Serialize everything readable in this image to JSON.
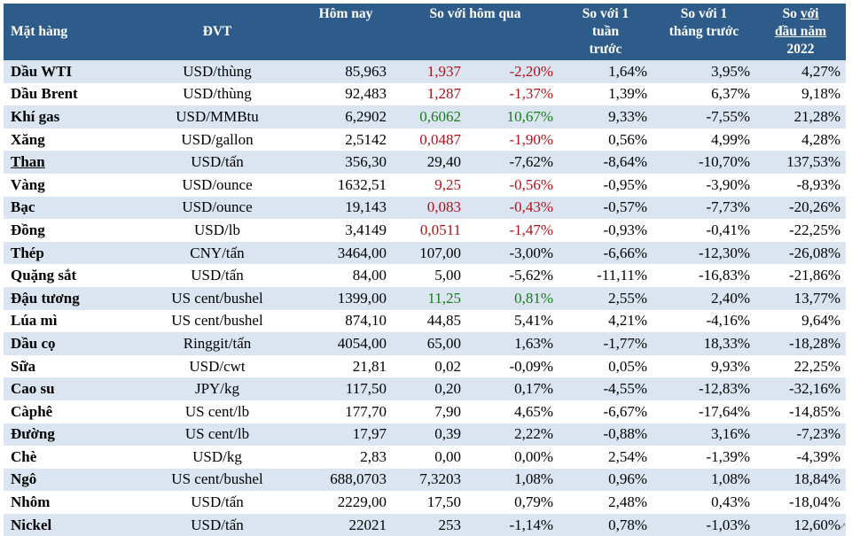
{
  "header": {
    "col_name": "Mặt hàng",
    "col_unit": "ĐVT",
    "col_today": "Hôm nay",
    "col_vs_yesterday": "So với hôm qua",
    "col_week_l1": "So với 1",
    "col_week_l2": "tuần",
    "col_week_l3": "trước",
    "col_month_l1": "So với 1",
    "col_month_l2": "tháng trước",
    "col_ytd_l1_a": "So ",
    "col_ytd_l1_b": "với",
    "col_ytd_l2": "đầu năm",
    "col_ytd_l3": "2022"
  },
  "colors": {
    "header_bg": "#2e5c8a",
    "stripe": "#dbe5f1",
    "up": "#1a7a1a",
    "down": "#b0121b"
  },
  "rows": [
    {
      "name": "Dầu WTI",
      "unit": "USD/thùng",
      "today": "85,963",
      "chg": "1,937",
      "pct": "-2,20%",
      "week": "1,64%",
      "month": "3,95%",
      "ytd": "4,27%",
      "color": "red"
    },
    {
      "name": "Dầu Brent",
      "unit": "USD/thùng",
      "today": "92,483",
      "chg": "1,287",
      "pct": "-1,37%",
      "week": "1,39%",
      "month": "6,37%",
      "ytd": "9,18%",
      "color": "red"
    },
    {
      "name": "Khí gas",
      "unit": "USD/MMBtu",
      "today": "6,2902",
      "chg": "0,6062",
      "pct": "10,67%",
      "week": "9,33%",
      "month": "-7,55%",
      "ytd": "21,28%",
      "color": "green"
    },
    {
      "name": "Xăng",
      "unit": "USD/gallon",
      "today": "2,5142",
      "chg": "0,0487",
      "pct": "-1,90%",
      "week": "0,56%",
      "month": "4,99%",
      "ytd": "4,28%",
      "color": "red"
    },
    {
      "name": "Than",
      "unit": "USD/tấn",
      "today": "356,30",
      "chg": "29,40",
      "pct": "-7,62%",
      "week": "-8,64%",
      "month": "-10,70%",
      "ytd": "137,53%",
      "color": "",
      "underline": true
    },
    {
      "name": "Vàng",
      "unit": "USD/ounce",
      "today": "1632,51",
      "chg": "9,25",
      "pct": "-0,56%",
      "week": "-0,95%",
      "month": "-3,90%",
      "ytd": "-8,93%",
      "color": "red"
    },
    {
      "name": "Bạc",
      "unit": "USD/ounce",
      "today": "19,143",
      "chg": "0,083",
      "pct": "-0,43%",
      "week": "-0,57%",
      "month": "-7,73%",
      "ytd": "-20,26%",
      "color": "red"
    },
    {
      "name": "Đồng",
      "unit": "USD/lb",
      "today": "3,4149",
      "chg": "0,0511",
      "pct": "-1,47%",
      "week": "-0,93%",
      "month": "-0,41%",
      "ytd": "-22,25%",
      "color": "red"
    },
    {
      "name": "Thép",
      "unit": "CNY/tấn",
      "today": "3464,00",
      "chg": "107,00",
      "pct": "-3,00%",
      "week": "-6,66%",
      "month": "-12,30%",
      "ytd": "-26,08%",
      "color": ""
    },
    {
      "name": "Quặng sắt",
      "unit": "USD/tấn",
      "today": "84,00",
      "chg": "5,00",
      "pct": "-5,62%",
      "week": "-11,11%",
      "month": "-16,83%",
      "ytd": "-21,86%",
      "color": ""
    },
    {
      "name": "Đậu tương",
      "unit": "US cent/bushel",
      "today": "1399,00",
      "chg": "11,25",
      "pct": "0,81%",
      "week": "2,55%",
      "month": "2,40%",
      "ytd": "13,77%",
      "color": "green"
    },
    {
      "name": "Lúa mì",
      "unit": "US cent/bushel",
      "today": "874,10",
      "chg": "44,85",
      "pct": "5,41%",
      "week": "4,21%",
      "month": "-4,16%",
      "ytd": "9,64%",
      "color": ""
    },
    {
      "name": "Dầu cọ",
      "unit": "Ringgit/tấn",
      "today": "4054,00",
      "chg": "65,00",
      "pct": "1,63%",
      "week": "-1,77%",
      "month": "18,33%",
      "ytd": "-18,28%",
      "color": ""
    },
    {
      "name": "Sữa",
      "unit": "USD/cwt",
      "today": "21,81",
      "chg": "0,02",
      "pct": "-0,09%",
      "week": "0,05%",
      "month": "9,93%",
      "ytd": "22,25%",
      "color": ""
    },
    {
      "name": "Cao su",
      "unit": "JPY/kg",
      "today": "117,50",
      "chg": "0,20",
      "pct": "0,17%",
      "week": "-4,55%",
      "month": "-12,83%",
      "ytd": "-32,16%",
      "color": ""
    },
    {
      "name": "Càphê",
      "unit": "US cent/lb",
      "today": "177,70",
      "chg": "7,90",
      "pct": "4,65%",
      "week": "-6,67%",
      "month": "-17,64%",
      "ytd": "-14,85%",
      "color": ""
    },
    {
      "name": "Đường",
      "unit": "US cent/lb",
      "today": "17,97",
      "chg": "0,39",
      "pct": "2,22%",
      "week": "-0,88%",
      "month": "3,16%",
      "ytd": "-7,23%",
      "color": ""
    },
    {
      "name": "Chè",
      "unit": "USD/kg",
      "today": "2,83",
      "chg": "0,00",
      "pct": "0,00%",
      "week": "2,54%",
      "month": "-1,39%",
      "ytd": "-4,39%",
      "color": ""
    },
    {
      "name": "Ngô",
      "unit": "US cent/bushel",
      "today": "688,0703",
      "chg": "7,3203",
      "pct": "1,08%",
      "week": "0,96%",
      "month": "1,08%",
      "ytd": "18,84%",
      "color": ""
    },
    {
      "name": "Nhôm",
      "unit": "USD/tấn",
      "today": "2229,00",
      "chg": "17,50",
      "pct": "0,79%",
      "week": "2,48%",
      "month": "0,43%",
      "ytd": "-18,04%",
      "color": ""
    },
    {
      "name": "Nickel",
      "unit": "USD/tấn",
      "today": "22021",
      "chg": "253",
      "pct": "-1,14%",
      "week": "0,78%",
      "month": "-1,03%",
      "ytd": "12,60%",
      "color": ""
    }
  ]
}
